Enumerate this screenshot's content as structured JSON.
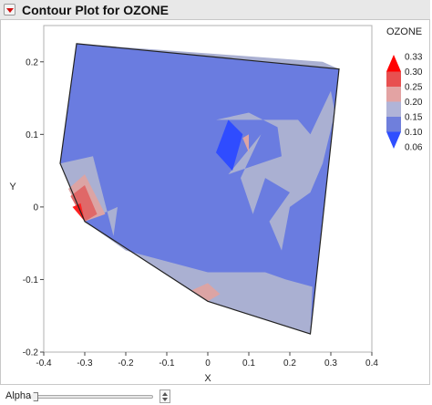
{
  "window": {
    "title": "Contour Plot for OZONE"
  },
  "controls": {
    "alpha_label": "Alpha"
  },
  "chart_data": {
    "type": "contour",
    "title": "",
    "xlabel": "X",
    "ylabel": "Y",
    "xlim": [
      -0.4,
      0.4
    ],
    "ylim": [
      -0.2,
      0.25
    ],
    "xticks": [
      "-0.4",
      "-0.3",
      "-0.2",
      "-0.1",
      "0",
      "0.1",
      "0.2",
      "0.3",
      "0.4"
    ],
    "yticks": [
      "-0.2",
      "-0.1",
      "0",
      "0.1",
      "0.2"
    ],
    "grid": false,
    "legend_position": "right",
    "legend": {
      "title": "OZONE",
      "levels": [
        "0.33",
        "0.30",
        "0.25",
        "0.20",
        "0.15",
        "0.10",
        "0.06"
      ],
      "colors": [
        "#ff0000",
        "#e85050",
        "#e3a3a3",
        "#b0b4d8",
        "#6f7fdc",
        "#2f4fff"
      ]
    },
    "colors": {
      "base": "#6a7ce0",
      "light": "#aab0d2",
      "pink": "#dca4a4",
      "medium_red": "#e06868",
      "red": "#ff2020",
      "deep_blue": "#2f4cff"
    },
    "boundary": [
      [
        -0.32,
        0.225
      ],
      [
        0.32,
        0.19
      ],
      [
        0.25,
        -0.175
      ],
      [
        0.0,
        -0.13
      ],
      [
        -0.3,
        -0.02
      ],
      [
        -0.36,
        0.06
      ]
    ],
    "regions": [
      {
        "level": "light",
        "points": [
          [
            -0.32,
            0.225
          ],
          [
            0.32,
            0.19
          ],
          [
            0.28,
            0.2
          ]
        ]
      },
      {
        "level": "light",
        "points": [
          [
            -0.36,
            0.06
          ],
          [
            -0.28,
            0.07
          ],
          [
            -0.23,
            -0.04
          ],
          [
            -0.22,
            0.0
          ],
          [
            -0.3,
            -0.02
          ]
        ]
      },
      {
        "level": "light",
        "points": [
          [
            0.19,
            -0.1
          ],
          [
            0.14,
            -0.09
          ],
          [
            0.0,
            -0.09
          ],
          [
            -0.2,
            -0.06
          ],
          [
            -0.3,
            -0.02
          ],
          [
            0.0,
            -0.13
          ],
          [
            0.25,
            -0.175
          ],
          [
            0.255,
            -0.11
          ]
        ]
      },
      {
        "level": "light",
        "points": [
          [
            0.02,
            0.12
          ],
          [
            0.1,
            0.13
          ],
          [
            0.17,
            0.11
          ],
          [
            0.18,
            0.07
          ],
          [
            0.05,
            0.045
          ],
          [
            0.13,
            0.1
          ],
          [
            0.08,
            0.04
          ],
          [
            0.11,
            -0.01
          ],
          [
            0.14,
            0.04
          ],
          [
            0.2,
            0.02
          ],
          [
            0.15,
            -0.02
          ],
          [
            0.18,
            -0.06
          ],
          [
            0.2,
            0.0
          ],
          [
            0.25,
            0.02
          ],
          [
            0.28,
            0.06
          ],
          [
            0.31,
            0.13
          ],
          [
            0.3,
            0.16
          ],
          [
            0.25,
            0.1
          ],
          [
            0.22,
            0.12
          ]
        ]
      },
      {
        "level": "pink",
        "points": [
          [
            -0.34,
            0.025
          ],
          [
            -0.3,
            0.045
          ],
          [
            -0.25,
            -0.01
          ],
          [
            -0.3,
            -0.02
          ]
        ]
      },
      {
        "level": "pink",
        "points": [
          [
            0.085,
            0.095
          ],
          [
            0.1,
            0.1
          ],
          [
            0.1,
            0.075
          ]
        ]
      },
      {
        "level": "pink",
        "points": [
          [
            -0.04,
            -0.115
          ],
          [
            0.0,
            -0.105
          ],
          [
            0.03,
            -0.12
          ],
          [
            0.0,
            -0.13
          ]
        ]
      },
      {
        "level": "medium_red",
        "points": [
          [
            -0.335,
            0.015
          ],
          [
            -0.3,
            0.03
          ],
          [
            -0.27,
            -0.01
          ],
          [
            -0.3,
            -0.02
          ]
        ]
      },
      {
        "level": "red",
        "points": [
          [
            -0.33,
            0.0
          ],
          [
            -0.31,
            0.005
          ],
          [
            -0.3,
            -0.02
          ]
        ]
      },
      {
        "level": "deep_blue",
        "points": [
          [
            0.02,
            0.075
          ],
          [
            0.06,
            0.05
          ],
          [
            0.085,
            0.1
          ],
          [
            0.05,
            0.12
          ]
        ]
      }
    ]
  }
}
